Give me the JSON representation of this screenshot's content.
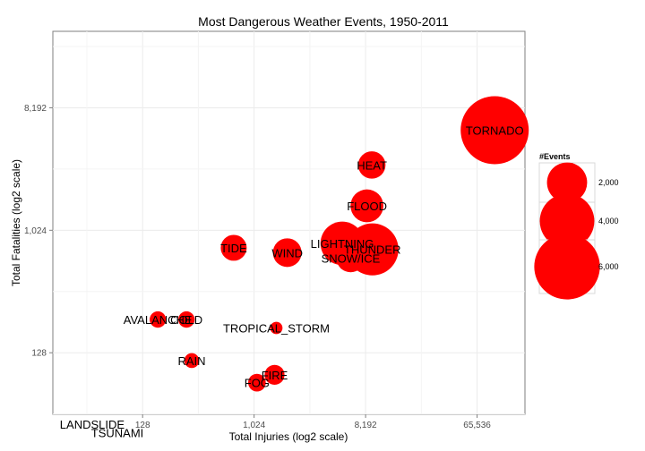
{
  "chart_data": {
    "type": "scatter",
    "title": "Most Dangerous Weather Events, 1950-2011",
    "xlabel": "Total Injuries (log2 scale)",
    "ylabel": "Total Fatalities (log2 scale)",
    "x_scale": "log2",
    "y_scale": "log2",
    "xlim": [
      24,
      160000
    ],
    "ylim": [
      45,
      30000
    ],
    "x_ticks": [
      128,
      1024,
      8192,
      65536
    ],
    "x_tick_labels": [
      "128",
      "1,024",
      "8,192",
      "65,536"
    ],
    "y_ticks": [
      128,
      1024,
      8192
    ],
    "y_tick_labels": [
      "128",
      "1,024",
      "8,192"
    ],
    "grid": true,
    "size_field": "#Events",
    "points": [
      {
        "label": "TORNADO",
        "x": 91000,
        "y": 5600,
        "events": 6500
      },
      {
        "label": "HEAT",
        "x": 9200,
        "y": 3100,
        "events": 800
      },
      {
        "label": "FLOOD",
        "x": 8400,
        "y": 1550,
        "events": 1250
      },
      {
        "label": "LIGHTNING",
        "x": 5300,
        "y": 820,
        "events": 2400
      },
      {
        "label": "THUNDER",
        "x": 9300,
        "y": 740,
        "events": 3600
      },
      {
        "label": "SNOW/ICE",
        "x": 6200,
        "y": 640,
        "events": 900
      },
      {
        "label": "WIND",
        "x": 1900,
        "y": 700,
        "events": 900
      },
      {
        "label": "TIDE",
        "x": 700,
        "y": 760,
        "events": 700
      },
      {
        "label": "AVALANCHE",
        "x": 170,
        "y": 225,
        "events": 200
      },
      {
        "label": "COLD",
        "x": 290,
        "y": 225,
        "events": 200
      },
      {
        "label": "TROPICAL_STORM",
        "x": 1550,
        "y": 195,
        "events": 80
      },
      {
        "label": "RAIN",
        "x": 320,
        "y": 112,
        "events": 150
      },
      {
        "label": "FIRE",
        "x": 1500,
        "y": 88,
        "events": 350
      },
      {
        "label": "FOG",
        "x": 1080,
        "y": 77,
        "events": 250
      },
      {
        "label": "LANDSLIDE",
        "x": 50,
        "y": 38,
        "events": 0
      },
      {
        "label": "TSUNAMI",
        "x": 80,
        "y": 33,
        "events": 0
      }
    ],
    "legend": {
      "title": "#Events",
      "position": "right",
      "entries": [
        {
          "label": "2,000",
          "events": 2000
        },
        {
          "label": "4,000",
          "events": 4000
        },
        {
          "label": "6,000",
          "events": 6000
        }
      ]
    },
    "colors": {
      "point": "#ff0000",
      "panel_bg": "#ffffff",
      "panel_border": "#7f7f7f",
      "grid": "#ebebeb"
    }
  }
}
